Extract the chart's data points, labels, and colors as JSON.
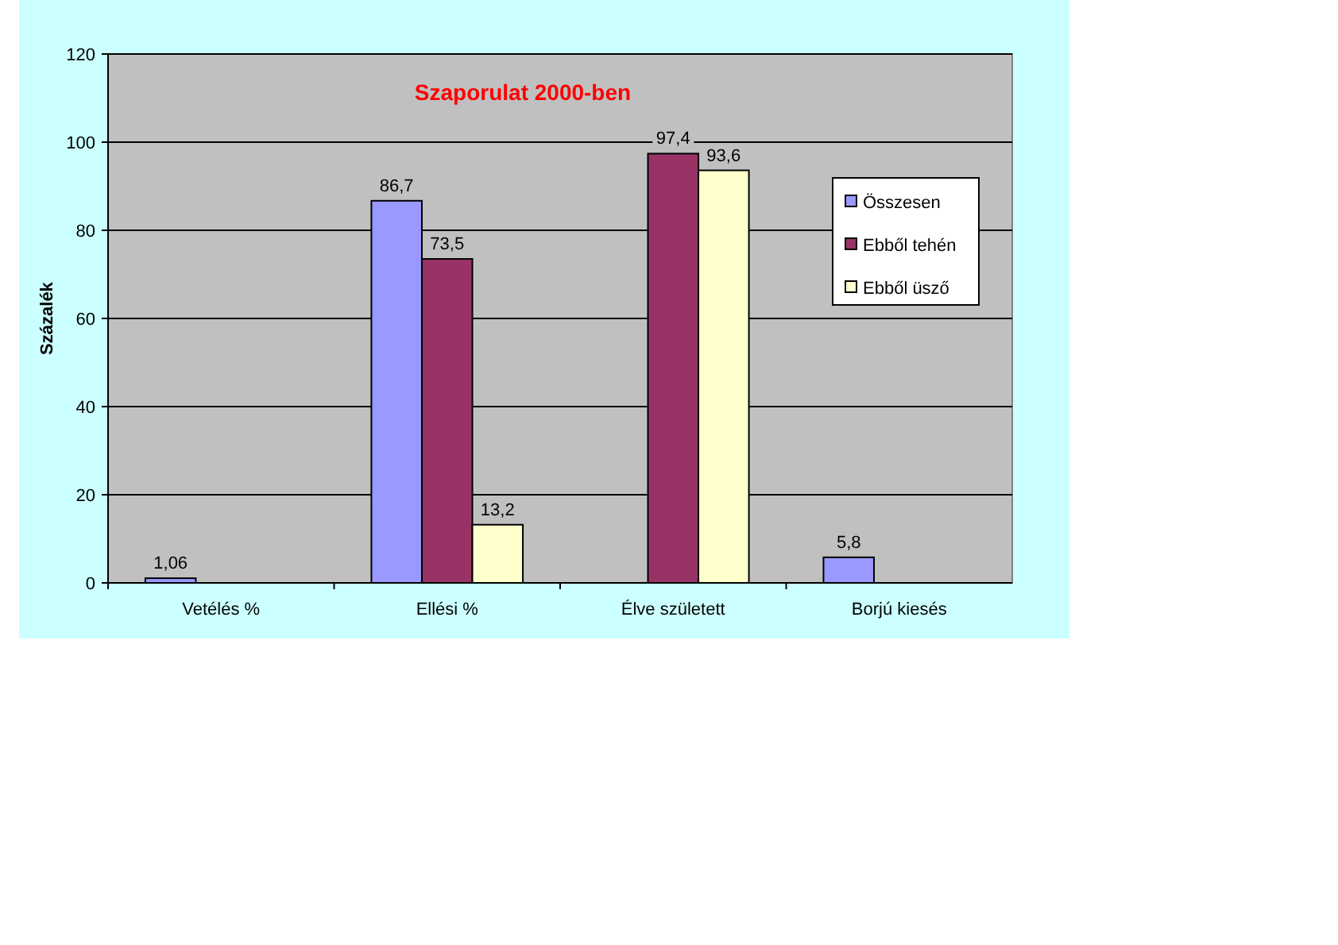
{
  "chart_data": {
    "type": "bar",
    "title": "Szaporulat 2000-ben",
    "ylabel": "Százalék",
    "categories": [
      "Vetélés %",
      "Ellési %",
      "Élve született",
      "Borjú kiesés"
    ],
    "series": [
      {
        "name": "Összesen",
        "color": "#9999ff",
        "values": [
          1.06,
          86.7,
          null,
          5.8
        ],
        "value_labels": [
          "1,06",
          "86,7",
          null,
          "5,8"
        ]
      },
      {
        "name": "Ebből tehén",
        "color": "#993366",
        "values": [
          null,
          73.5,
          97.4,
          null
        ],
        "value_labels": [
          null,
          "73,5",
          "97,4",
          null
        ]
      },
      {
        "name": "Ebből üsző",
        "color": "#ffffcc",
        "values": [
          null,
          13.2,
          93.6,
          null
        ],
        "value_labels": [
          null,
          "13,2",
          "93,6",
          null
        ]
      }
    ],
    "ylim": [
      0,
      120
    ],
    "yticks": [
      0,
      20,
      40,
      60,
      80,
      100,
      120
    ],
    "grid": "y",
    "legend": "right"
  }
}
